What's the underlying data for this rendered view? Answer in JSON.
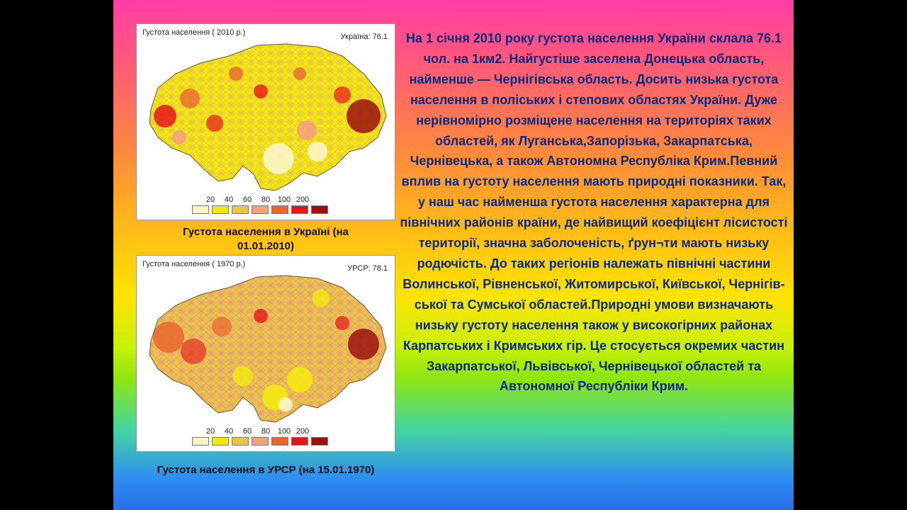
{
  "map_2010": {
    "title": "Густота населення ( 2010 р.)",
    "country": "Україна: 76.1",
    "caption": "Густота населення в Україні (на 01.01.2010)"
  },
  "map_1970": {
    "title": "Густота населення ( 1970 р.)",
    "country": "УРСР: 78.1",
    "caption": "Густота населення в УРСР (на 15.01.1970)"
  },
  "legend": {
    "ticks": [
      "20",
      "40",
      "60",
      "80",
      "100",
      "200"
    ],
    "colors": [
      "#fbf6c6",
      "#f4e812",
      "#e9c64a",
      "#f2a37c",
      "#e8672e",
      "#e6151c",
      "#9c1010"
    ]
  },
  "body_text": "На 1 січня 2010 року густота населення України склала 76.1 чол. на 1км2. Найгустіше заселена Донецька область, найменше — Чернігівська область. Досить низька густота населення в поліських і степових областях України. Дуже нерівномірно розміщене населення на територіях таких областей, як Луганська,Запорізька, Закарпатська, Чернівецька, а також Автономна Республіка Крим.Певний вплив на густоту населення мають природні показники. Так, у наш час найменша густота населення характерна для північних районів країни, де найвищий коефіцієнт лісистості території, значна заболоченість, ґрун¬ти мають низьку родючість. До таких регіонів належать північні частини Волинської, Рівненської, Житомирської, Київської, Чернігів-ської та Сумської областей.Природні умови визначають низьку густоту населення також у високогірних районах Карпатських і Кримських гір. Це стосується окремих частин Закарпатської, Львівської, Чернівецької областей та Автономної Республіки Крим."
}
